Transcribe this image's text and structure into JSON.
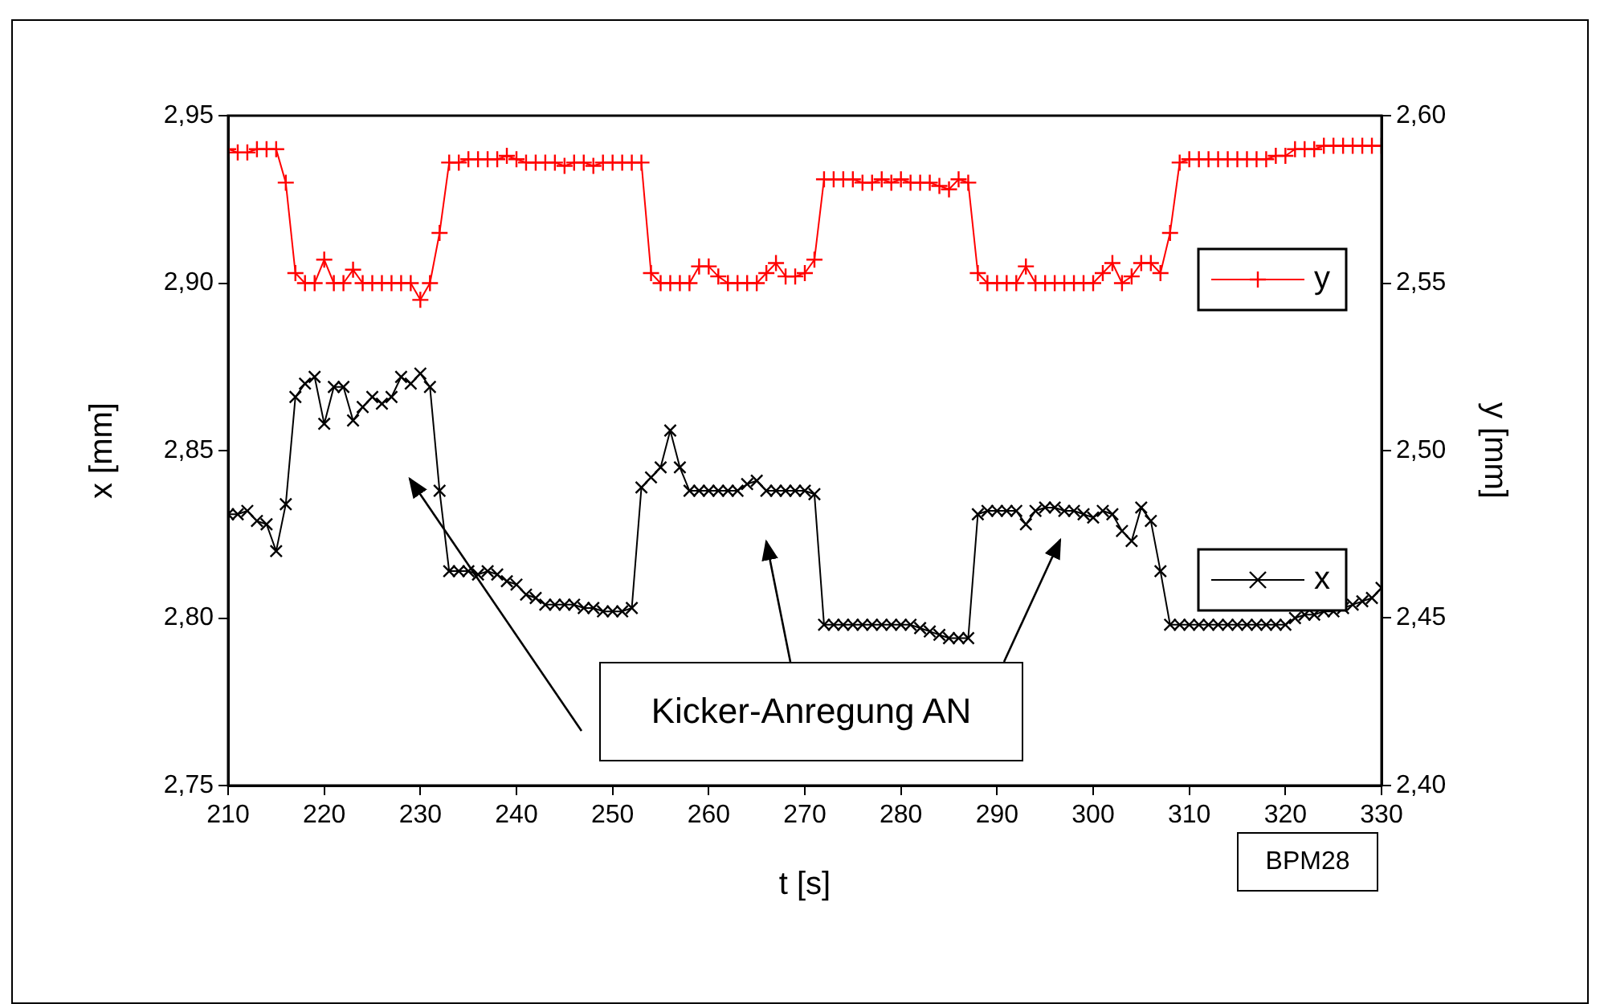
{
  "chart_data": {
    "type": "line",
    "xlabel": "t [s]",
    "ylabel": "x [mm]",
    "y2label": "y [mm]",
    "x": [
      210,
      211,
      212,
      213,
      214,
      215,
      216,
      217,
      218,
      219,
      220,
      221,
      222,
      223,
      224,
      225,
      226,
      227,
      228,
      229,
      230,
      231,
      232,
      233,
      234,
      235,
      236,
      237,
      238,
      239,
      240,
      241,
      242,
      243,
      244,
      245,
      246,
      247,
      248,
      249,
      250,
      251,
      252,
      253,
      254,
      255,
      256,
      257,
      258,
      259,
      260,
      261,
      262,
      263,
      264,
      265,
      266,
      267,
      268,
      269,
      270,
      271,
      272,
      273,
      274,
      275,
      276,
      277,
      278,
      279,
      280,
      281,
      282,
      283,
      284,
      285,
      286,
      287,
      288,
      289,
      290,
      291,
      292,
      293,
      294,
      295,
      296,
      297,
      298,
      299,
      300,
      301,
      302,
      303,
      304,
      305,
      306,
      307,
      308,
      309,
      310,
      311,
      312,
      313,
      314,
      315,
      316,
      317,
      318,
      319,
      320,
      321,
      322,
      323,
      324,
      325,
      326,
      327,
      328,
      329,
      330
    ],
    "series": [
      {
        "name": "y",
        "color": "#ff0000",
        "axis": "y2",
        "marker": "cross",
        "values": [
          2.59,
          2.589,
          2.589,
          2.59,
          2.59,
          2.59,
          2.58,
          2.553,
          2.55,
          2.55,
          2.557,
          2.55,
          2.55,
          2.554,
          2.55,
          2.55,
          2.55,
          2.55,
          2.55,
          2.55,
          2.545,
          2.55,
          2.565,
          2.586,
          2.586,
          2.587,
          2.587,
          2.587,
          2.587,
          2.588,
          2.587,
          2.586,
          2.586,
          2.586,
          2.586,
          2.585,
          2.586,
          2.586,
          2.585,
          2.586,
          2.586,
          2.586,
          2.586,
          2.586,
          2.553,
          2.55,
          2.55,
          2.55,
          2.55,
          2.555,
          2.555,
          2.552,
          2.55,
          2.55,
          2.55,
          2.55,
          2.553,
          2.556,
          2.552,
          2.552,
          2.553,
          2.557,
          2.581,
          2.581,
          2.581,
          2.581,
          2.58,
          2.58,
          2.581,
          2.58,
          2.581,
          2.58,
          2.58,
          2.58,
          2.579,
          2.578,
          2.581,
          2.58,
          2.553,
          2.55,
          2.55,
          2.55,
          2.55,
          2.555,
          2.55,
          2.55,
          2.55,
          2.55,
          2.55,
          2.55,
          2.55,
          2.553,
          2.556,
          2.55,
          2.552,
          2.556,
          2.556,
          2.553,
          2.565,
          2.586,
          2.587,
          2.587,
          2.587,
          2.587,
          2.587,
          2.587,
          2.587,
          2.587,
          2.587,
          2.588,
          2.588,
          2.59,
          2.59,
          2.59,
          2.591,
          2.591,
          2.591,
          2.591,
          2.591,
          2.591,
          2.591
        ]
      },
      {
        "name": "x",
        "color": "#000000",
        "axis": "y",
        "marker": "x",
        "values": [
          2.831,
          2.831,
          2.832,
          2.829,
          2.828,
          2.82,
          2.834,
          2.866,
          2.87,
          2.872,
          2.858,
          2.869,
          2.869,
          2.859,
          2.863,
          2.866,
          2.864,
          2.866,
          2.872,
          2.87,
          2.873,
          2.869,
          2.838,
          2.814,
          2.814,
          2.814,
          2.813,
          2.814,
          2.813,
          2.811,
          2.81,
          2.807,
          2.806,
          2.804,
          2.804,
          2.804,
          2.804,
          2.803,
          2.803,
          2.802,
          2.802,
          2.802,
          2.803,
          2.839,
          2.842,
          2.845,
          2.856,
          2.845,
          2.838,
          2.838,
          2.838,
          2.838,
          2.838,
          2.838,
          2.84,
          2.841,
          2.838,
          2.838,
          2.838,
          2.838,
          2.838,
          2.837,
          2.798,
          2.798,
          2.798,
          2.798,
          2.798,
          2.798,
          2.798,
          2.798,
          2.798,
          2.798,
          2.797,
          2.796,
          2.795,
          2.794,
          2.794,
          2.794,
          2.831,
          2.832,
          2.832,
          2.832,
          2.832,
          2.828,
          2.832,
          2.833,
          2.833,
          2.832,
          2.832,
          2.831,
          2.83,
          2.832,
          2.831,
          2.826,
          2.823,
          2.833,
          2.829,
          2.814,
          2.798,
          2.798,
          2.798,
          2.798,
          2.798,
          2.798,
          2.798,
          2.798,
          2.798,
          2.798,
          2.798,
          2.798,
          2.798,
          2.8,
          2.801,
          2.801,
          2.802,
          2.802,
          2.803,
          2.804,
          2.805,
          2.806,
          2.809
        ]
      }
    ],
    "xlim": [
      210,
      330
    ],
    "xticks": [
      210,
      220,
      230,
      240,
      250,
      260,
      270,
      280,
      290,
      300,
      310,
      320,
      330
    ],
    "ylim": [
      2.75,
      2.95
    ],
    "yticks": [
      {
        "value": 2.75,
        "label": "2,75"
      },
      {
        "value": 2.8,
        "label": "2,80"
      },
      {
        "value": 2.85,
        "label": "2,85"
      },
      {
        "value": 2.9,
        "label": "2,90"
      },
      {
        "value": 2.95,
        "label": "2,95"
      }
    ],
    "y2lim": [
      2.4,
      2.6
    ],
    "y2ticks": [
      {
        "value": 2.4,
        "label": "2,40"
      },
      {
        "value": 2.45,
        "label": "2,45"
      },
      {
        "value": 2.5,
        "label": "2,50"
      },
      {
        "value": 2.55,
        "label": "2,55"
      },
      {
        "value": 2.6,
        "label": "2,60"
      }
    ],
    "grid": false,
    "legend": "right",
    "line_style": "solid",
    "annotations": [
      "Kicker-Anregung AN",
      "BPM28"
    ]
  }
}
